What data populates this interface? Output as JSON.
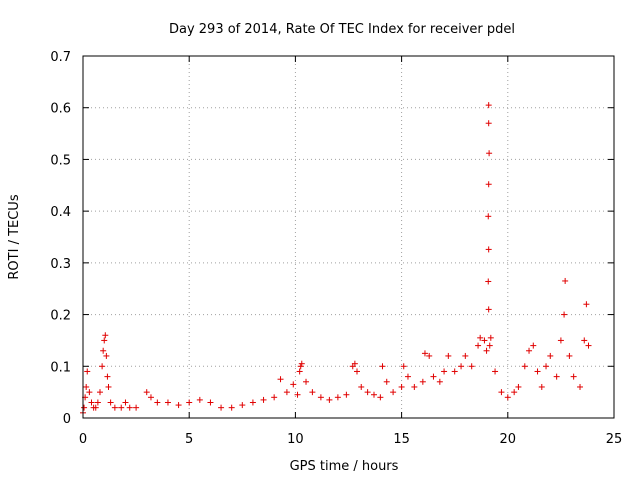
{
  "chart_data": {
    "type": "scatter",
    "title": "Day 293 of 2014, Rate Of TEC Index for receiver pdel",
    "xlabel": "GPS time / hours",
    "ylabel": "ROTI / TECUs",
    "xlim": [
      0,
      25
    ],
    "ylim": [
      0,
      0.7
    ],
    "xticks": [
      "0",
      "5",
      "10",
      "15",
      "20",
      "25"
    ],
    "yticks": [
      "0",
      "0.1",
      "0.2",
      "0.3",
      "0.4",
      "0.5",
      "0.6",
      "0.7"
    ],
    "grid": true,
    "marker": "+",
    "color": "#e00000",
    "series": [
      {
        "name": "ROTI",
        "points": [
          [
            0.0,
            0.01
          ],
          [
            0.05,
            0.02
          ],
          [
            0.1,
            0.04
          ],
          [
            0.15,
            0.06
          ],
          [
            0.2,
            0.09
          ],
          [
            0.3,
            0.05
          ],
          [
            0.4,
            0.03
          ],
          [
            0.5,
            0.02
          ],
          [
            0.6,
            0.02
          ],
          [
            0.7,
            0.03
          ],
          [
            0.8,
            0.05
          ],
          [
            0.9,
            0.1
          ],
          [
            0.95,
            0.13
          ],
          [
            1.0,
            0.15
          ],
          [
            1.05,
            0.16
          ],
          [
            1.1,
            0.12
          ],
          [
            1.15,
            0.08
          ],
          [
            1.2,
            0.06
          ],
          [
            1.3,
            0.03
          ],
          [
            1.5,
            0.02
          ],
          [
            1.8,
            0.02
          ],
          [
            2.0,
            0.03
          ],
          [
            2.2,
            0.02
          ],
          [
            2.5,
            0.02
          ],
          [
            3.0,
            0.05
          ],
          [
            3.2,
            0.04
          ],
          [
            3.5,
            0.03
          ],
          [
            4.0,
            0.03
          ],
          [
            4.5,
            0.025
          ],
          [
            5.0,
            0.03
          ],
          [
            5.5,
            0.035
          ],
          [
            6.0,
            0.03
          ],
          [
            6.5,
            0.02
          ],
          [
            7.0,
            0.02
          ],
          [
            7.5,
            0.025
          ],
          [
            8.0,
            0.03
          ],
          [
            8.5,
            0.035
          ],
          [
            9.0,
            0.04
          ],
          [
            9.3,
            0.075
          ],
          [
            9.6,
            0.05
          ],
          [
            9.9,
            0.065
          ],
          [
            10.1,
            0.045
          ],
          [
            10.2,
            0.09
          ],
          [
            10.25,
            0.1
          ],
          [
            10.3,
            0.105
          ],
          [
            10.5,
            0.07
          ],
          [
            10.8,
            0.05
          ],
          [
            11.2,
            0.04
          ],
          [
            11.6,
            0.035
          ],
          [
            12.0,
            0.04
          ],
          [
            12.4,
            0.045
          ],
          [
            12.7,
            0.1
          ],
          [
            12.8,
            0.105
          ],
          [
            12.9,
            0.09
          ],
          [
            13.1,
            0.06
          ],
          [
            13.4,
            0.05
          ],
          [
            13.7,
            0.045
          ],
          [
            14.0,
            0.04
          ],
          [
            14.1,
            0.1
          ],
          [
            14.3,
            0.07
          ],
          [
            14.6,
            0.05
          ],
          [
            15.0,
            0.06
          ],
          [
            15.1,
            0.1
          ],
          [
            15.3,
            0.08
          ],
          [
            15.6,
            0.06
          ],
          [
            16.0,
            0.07
          ],
          [
            16.1,
            0.125
          ],
          [
            16.3,
            0.12
          ],
          [
            16.5,
            0.08
          ],
          [
            16.8,
            0.07
          ],
          [
            17.0,
            0.09
          ],
          [
            17.2,
            0.12
          ],
          [
            17.5,
            0.09
          ],
          [
            17.8,
            0.1
          ],
          [
            18.0,
            0.12
          ],
          [
            18.3,
            0.1
          ],
          [
            18.6,
            0.14
          ],
          [
            18.7,
            0.155
          ],
          [
            18.9,
            0.15
          ],
          [
            19.0,
            0.13
          ],
          [
            19.15,
            0.14
          ],
          [
            19.2,
            0.155
          ],
          [
            19.4,
            0.09
          ],
          [
            19.7,
            0.05
          ],
          [
            20.0,
            0.04
          ],
          [
            20.3,
            0.05
          ],
          [
            20.5,
            0.06
          ],
          [
            20.8,
            0.1
          ],
          [
            21.0,
            0.13
          ],
          [
            21.2,
            0.14
          ],
          [
            21.4,
            0.09
          ],
          [
            21.6,
            0.06
          ],
          [
            21.8,
            0.1
          ],
          [
            22.0,
            0.12
          ],
          [
            22.3,
            0.08
          ],
          [
            22.5,
            0.15
          ],
          [
            22.65,
            0.2
          ],
          [
            22.7,
            0.265
          ],
          [
            22.9,
            0.12
          ],
          [
            23.1,
            0.08
          ],
          [
            23.4,
            0.06
          ],
          [
            23.6,
            0.15
          ],
          [
            23.7,
            0.22
          ],
          [
            23.8,
            0.14
          ],
          [
            19.1,
            0.605
          ],
          [
            19.1,
            0.57
          ],
          [
            19.12,
            0.512
          ],
          [
            19.1,
            0.452
          ],
          [
            19.08,
            0.39
          ],
          [
            19.1,
            0.326
          ],
          [
            19.08,
            0.264
          ],
          [
            19.1,
            0.21
          ]
        ]
      }
    ]
  }
}
